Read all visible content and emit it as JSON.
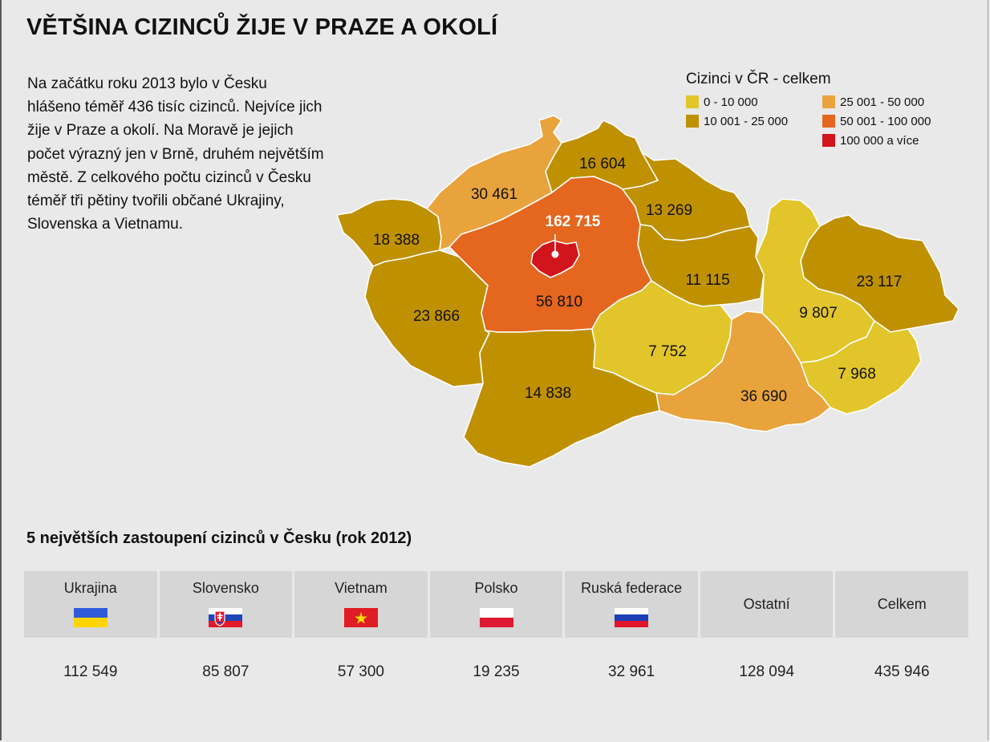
{
  "title": "VĚTŠINA CIZINCŮ ŽIJE V PRAZE A OKOLÍ",
  "intro": "Na začátku roku 2013 bylo v Česku hlášeno téměř 436 tisíc cizinců. Nejvíce jich žije v Praze a okolí. Na Moravě je jejich počet výrazný jen v Brně, druhém největším městě. Z celkového počtu cizinců v Česku téměř tři pětiny tvořili občané Ukrajiny, Slovenska a Vietnamu.",
  "legend": {
    "title": "Cizinci v ČR - celkem",
    "items": [
      {
        "label": "0 - 10 000",
        "color": "#e2c52a"
      },
      {
        "label": "25 001 - 50 000",
        "color": "#e9a33d"
      },
      {
        "label": "10 001 - 25 000",
        "color": "#bf9000"
      },
      {
        "label": "50 001 - 100 000",
        "color": "#e4661f"
      },
      {
        "label": "",
        "color": ""
      },
      {
        "label": "100 000 a více",
        "color": "#d2141c"
      }
    ]
  },
  "map": {
    "regions": [
      {
        "name": "Karlovarský",
        "value": "18 388",
        "color": "#bf9000"
      },
      {
        "name": "Plzeňský",
        "value": "23 866",
        "color": "#bf9000"
      },
      {
        "name": "Ústecký",
        "value": "30 461",
        "color": "#e9a33d"
      },
      {
        "name": "Liberecký",
        "value": "16 604",
        "color": "#bf9000"
      },
      {
        "name": "Královéhradecký",
        "value": "13 269",
        "color": "#bf9000"
      },
      {
        "name": "Pardubický",
        "value": "11 115",
        "color": "#bf9000"
      },
      {
        "name": "Středočeský",
        "value": "56 810",
        "color": "#e4661f"
      },
      {
        "name": "Praha",
        "value": "162 715",
        "color": "#d2141c"
      },
      {
        "name": "Jihočeský",
        "value": "14 838",
        "color": "#bf9000"
      },
      {
        "name": "Vysočina",
        "value": "7 752",
        "color": "#e2c52a"
      },
      {
        "name": "Jihomoravský",
        "value": "36 690",
        "color": "#e9a33d"
      },
      {
        "name": "Olomoucký",
        "value": "9 807",
        "color": "#e2c52a"
      },
      {
        "name": "Moravskoslezský",
        "value": "23 117",
        "color": "#bf9000"
      },
      {
        "name": "Zlínský",
        "value": "7 968",
        "color": "#e2c52a"
      }
    ]
  },
  "table": {
    "title": "5 největších zastoupení cizinců v Česku (rok 2012)",
    "columns": [
      {
        "label": "Ukrajina",
        "flag": "ukraine-flag-icon",
        "value": "112 549"
      },
      {
        "label": "Slovensko",
        "flag": "slovakia-flag-icon",
        "value": "85 807"
      },
      {
        "label": "Vietnam",
        "flag": "vietnam-flag-icon",
        "value": "57 300"
      },
      {
        "label": "Polsko",
        "flag": "poland-flag-icon",
        "value": "19 235"
      },
      {
        "label": "Ruská federace",
        "flag": "russia-flag-icon",
        "value": "32 961"
      },
      {
        "label": "Ostatní",
        "flag": "",
        "value": "128 094"
      },
      {
        "label": "Celkem",
        "flag": "",
        "value": "435 946"
      }
    ]
  }
}
